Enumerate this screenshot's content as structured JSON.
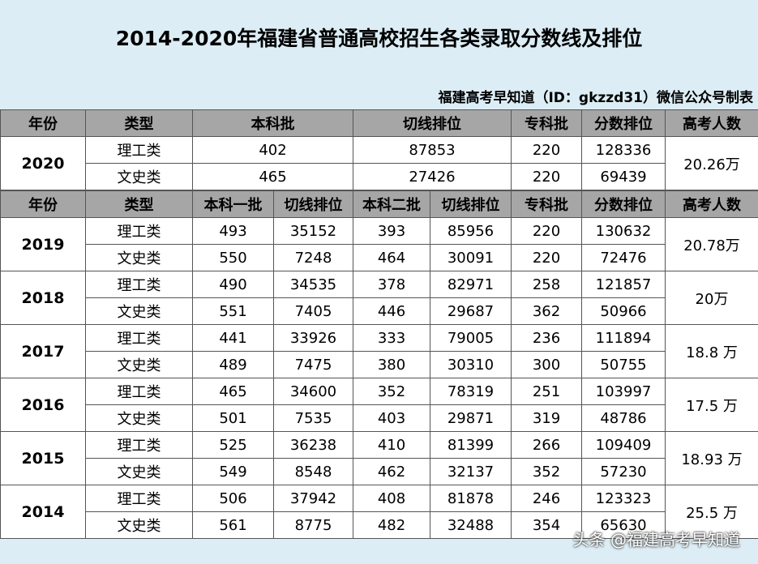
{
  "header": {
    "title": "2014-2020年福建省普通高校招生各类录取分数线及排位",
    "subtitle": "福建高考早知道（ID：gkzzd31）微信公众号制表"
  },
  "table1": {
    "columns": [
      "年份",
      "类型",
      "本科批",
      "切线排位",
      "专科批",
      "分数排位",
      "高考人数"
    ],
    "rows": [
      {
        "year": "2020",
        "total": "20.26万",
        "types": [
          {
            "type": "理工类",
            "values": [
              402,
              87853,
              220,
              128336
            ]
          },
          {
            "type": "文史类",
            "values": [
              465,
              27426,
              220,
              69439
            ]
          }
        ]
      }
    ]
  },
  "table2": {
    "columns": [
      "年份",
      "类型",
      "本科一批",
      "切线排位",
      "本科二批",
      "切线排位",
      "专科批",
      "分数排位",
      "高考人数"
    ],
    "rows": [
      {
        "year": "2019",
        "total": "20.78万",
        "types": [
          {
            "type": "理工类",
            "values": [
              493,
              35152,
              393,
              85956,
              220,
              130632
            ]
          },
          {
            "type": "文史类",
            "values": [
              550,
              7248,
              464,
              30091,
              220,
              72476
            ]
          }
        ]
      },
      {
        "year": "2018",
        "total": "20万",
        "types": [
          {
            "type": "理工类",
            "values": [
              490,
              34535,
              378,
              82971,
              258,
              121857
            ]
          },
          {
            "type": "文史类",
            "values": [
              551,
              7405,
              446,
              29687,
              362,
              50966
            ]
          }
        ]
      },
      {
        "year": "2017",
        "total": "18.8 万",
        "types": [
          {
            "type": "理工类",
            "values": [
              441,
              33926,
              333,
              79005,
              236,
              111894
            ]
          },
          {
            "type": "文史类",
            "values": [
              489,
              7475,
              380,
              30310,
              300,
              50755
            ]
          }
        ]
      },
      {
        "year": "2016",
        "total": "17.5 万",
        "types": [
          {
            "type": "理工类",
            "values": [
              465,
              34600,
              352,
              78319,
              251,
              103997
            ]
          },
          {
            "type": "文史类",
            "values": [
              501,
              7535,
              403,
              29871,
              319,
              48786
            ]
          }
        ]
      },
      {
        "year": "2015",
        "total": "18.93 万",
        "types": [
          {
            "type": "理工类",
            "values": [
              525,
              36238,
              410,
              81399,
              266,
              109409
            ]
          },
          {
            "type": "文史类",
            "values": [
              549,
              8548,
              462,
              32137,
              352,
              57230
            ]
          }
        ]
      },
      {
        "year": "2014",
        "total": "25.5 万",
        "types": [
          {
            "type": "理工类",
            "values": [
              506,
              37942,
              408,
              81878,
              246,
              123323
            ]
          },
          {
            "type": "文史类",
            "values": [
              561,
              8775,
              482,
              32488,
              354,
              65630
            ]
          }
        ]
      }
    ]
  },
  "watermark": "头条 @福建高考早知道"
}
